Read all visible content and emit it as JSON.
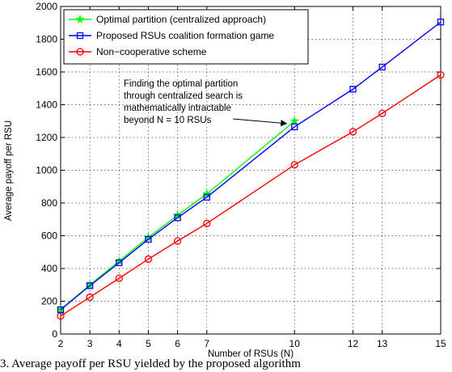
{
  "chart_data": {
    "type": "line",
    "xlabel": "Number of RSUs (N)",
    "ylabel": "Average payoff per RSU",
    "x_ticks": [
      2,
      3,
      4,
      5,
      6,
      7,
      10,
      12,
      13,
      15
    ],
    "xlim": [
      2,
      15
    ],
    "ylim": [
      0,
      2000
    ],
    "y_ticks": [
      0,
      200,
      400,
      600,
      800,
      1000,
      1200,
      1400,
      1600,
      1800,
      2000
    ],
    "grid": true,
    "legend_position": "top-left",
    "series": [
      {
        "name": "Optimal partition (centralized approach)",
        "color": "#00ff00",
        "marker": "star",
        "x": [
          2,
          3,
          4,
          5,
          6,
          7,
          10
        ],
        "values": [
          150,
          300,
          445,
          590,
          725,
          855,
          1300
        ]
      },
      {
        "name": "Proposed RSUs coalition formation game",
        "color": "#0000ff",
        "marker": "square",
        "x": [
          2,
          3,
          4,
          5,
          6,
          7,
          10,
          12,
          13,
          15
        ],
        "values": [
          148,
          295,
          435,
          578,
          710,
          835,
          1265,
          1495,
          1630,
          1905
        ]
      },
      {
        "name": "Non−cooperative scheme",
        "color": "#ff0000",
        "marker": "circle",
        "x": [
          2,
          3,
          4,
          5,
          6,
          7,
          10,
          12,
          13,
          15
        ],
        "values": [
          110,
          225,
          340,
          457,
          568,
          675,
          1033,
          1235,
          1347,
          1582
        ]
      }
    ],
    "annotation": {
      "lines": [
        "Finding the optimal partition",
        "through centralized search is",
        "mathematically intractable",
        "beyond N = 10 RSUs"
      ],
      "arrow_target": {
        "x": 10,
        "y": 1300
      }
    }
  },
  "caption": "3.   Average payoff per RSU yielded by the proposed algorithm"
}
